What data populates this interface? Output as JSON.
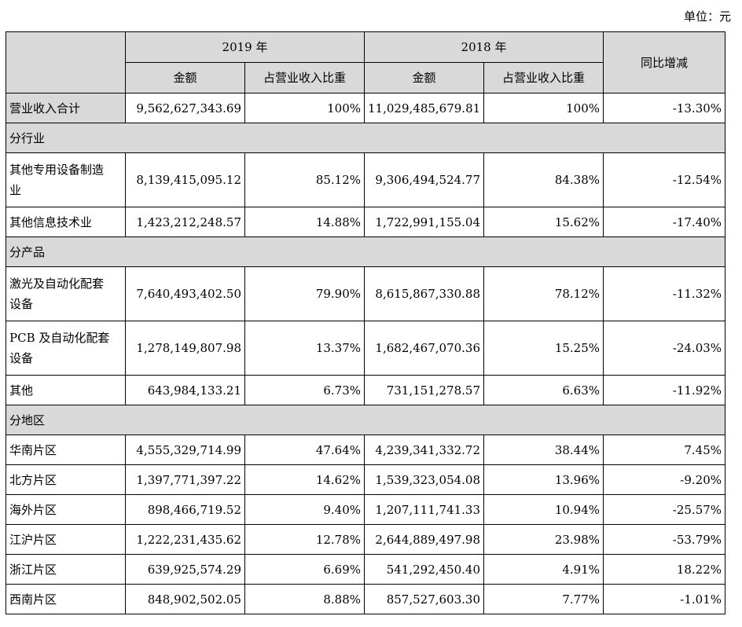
{
  "unit_label": "单位：元",
  "header": {
    "year_2019": "2019 年",
    "year_2018": "2018 年",
    "change": "同比增减",
    "amount": "金额",
    "ratio": "占营业收入比重"
  },
  "total": {
    "label": "营业收入合计",
    "amount_2019": "9,562,627,343.69",
    "ratio_2019": "100%",
    "amount_2018": "11,029,485,679.81",
    "ratio_2018": "100%",
    "change": "-13.30%"
  },
  "sections": [
    {
      "title": "分行业",
      "rows": [
        {
          "label1": "其他专用设备制造",
          "label2": "业",
          "amount_2019": "8,139,415,095.12",
          "ratio_2019": "85.12%",
          "amount_2018": "9,306,494,524.77",
          "ratio_2018": "84.38%",
          "change": "-12.54%"
        },
        {
          "label1": "其他信息技术业",
          "label2": "",
          "amount_2019": "1,423,212,248.57",
          "ratio_2019": "14.88%",
          "amount_2018": "1,722,991,155.04",
          "ratio_2018": "15.62%",
          "change": "-17.40%"
        }
      ]
    },
    {
      "title": "分产品",
      "rows": [
        {
          "label1": "激光及自动化配套",
          "label2": "设备",
          "amount_2019": "7,640,493,402.50",
          "ratio_2019": "79.90%",
          "amount_2018": "8,615,867,330.88",
          "ratio_2018": "78.12%",
          "change": "-11.32%"
        },
        {
          "label1": "PCB 及自动化配套",
          "label2": "设备",
          "amount_2019": "1,278,149,807.98",
          "ratio_2019": "13.37%",
          "amount_2018": "1,682,467,070.36",
          "ratio_2018": "15.25%",
          "change": "-24.03%"
        },
        {
          "label1": "其他",
          "label2": "",
          "amount_2019": "643,984,133.21",
          "ratio_2019": "6.73%",
          "amount_2018": "731,151,278.57",
          "ratio_2018": "6.63%",
          "change": "-11.92%"
        }
      ]
    },
    {
      "title": "分地区",
      "rows": [
        {
          "label1": "华南片区",
          "label2": "",
          "amount_2019": "4,555,329,714.99",
          "ratio_2019": "47.64%",
          "amount_2018": "4,239,341,332.72",
          "ratio_2018": "38.44%",
          "change": "7.45%"
        },
        {
          "label1": "北方片区",
          "label2": "",
          "amount_2019": "1,397,771,397.22",
          "ratio_2019": "14.62%",
          "amount_2018": "1,539,323,054.08",
          "ratio_2018": "13.96%",
          "change": "-9.20%"
        },
        {
          "label1": "海外片区",
          "label2": "",
          "amount_2019": "898,466,719.52",
          "ratio_2019": "9.40%",
          "amount_2018": "1,207,111,741.33",
          "ratio_2018": "10.94%",
          "change": "-25.57%"
        },
        {
          "label1": "江沪片区",
          "label2": "",
          "amount_2019": "1,222,231,435.62",
          "ratio_2019": "12.78%",
          "amount_2018": "2,644,889,497.98",
          "ratio_2018": "23.98%",
          "change": "-53.79%"
        },
        {
          "label1": "浙江片区",
          "label2": "",
          "amount_2019": "639,925,574.29",
          "ratio_2019": "6.69%",
          "amount_2018": "541,292,450.40",
          "ratio_2018": "4.91%",
          "change": "18.22%"
        },
        {
          "label1": "西南片区",
          "label2": "",
          "amount_2019": "848,902,502.05",
          "ratio_2019": "8.88%",
          "amount_2018": "857,527,603.30",
          "ratio_2018": "7.77%",
          "change": "-1.01%"
        }
      ]
    }
  ]
}
